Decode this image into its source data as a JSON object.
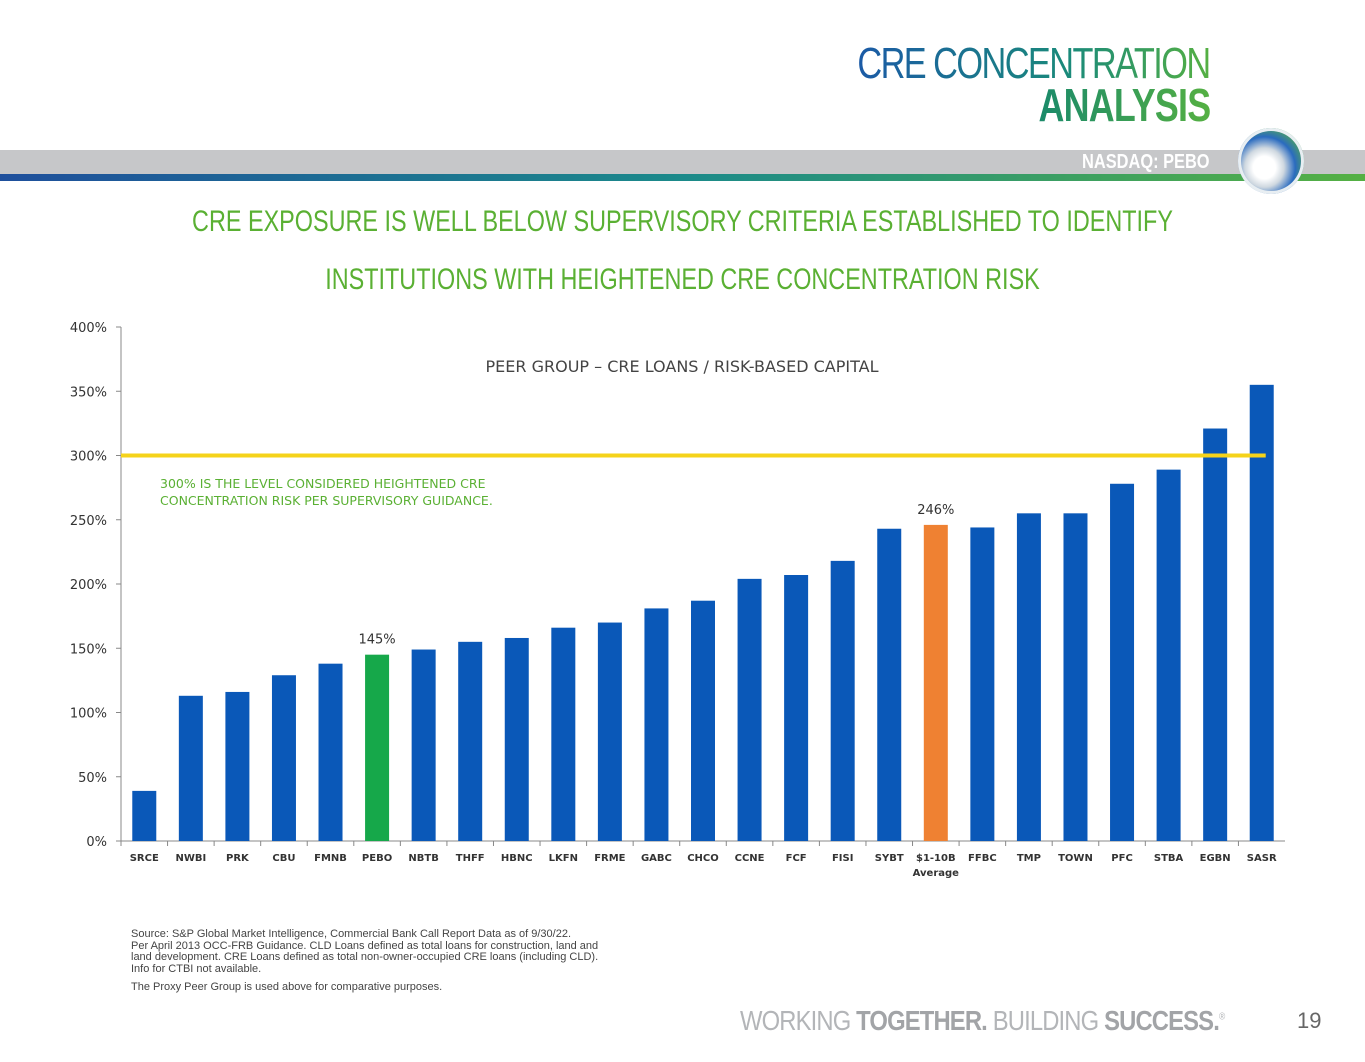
{
  "header": {
    "title_line1": "CRE CONCENTRATION",
    "title_line2": "ANALYSIS",
    "ticker": "NASDAQ: PEBO",
    "logo": "peoples-bancorp-logo"
  },
  "headline": {
    "line1": "CRE EXPOSURE IS WELL BELOW SUPERVISORY CRITERIA ESTABLISHED TO IDENTIFY",
    "line2": "INSTITUTIONS WITH HEIGHTENED CRE CONCENTRATION RISK"
  },
  "chart_data": {
    "type": "bar",
    "title": "PEER GROUP – CRE LOANS / RISK-BASED CAPITAL",
    "categories": [
      "SRCE",
      "NWBI",
      "PRK",
      "CBU",
      "FMNB",
      "PEBO",
      "NBTB",
      "THFF",
      "HBNC",
      "LKFN",
      "FRME",
      "GABC",
      "CHCO",
      "CCNE",
      "FCF",
      "FISI",
      "SYBT",
      "$1-10B Average",
      "FFBC",
      "TMP",
      "TOWN",
      "PFC",
      "STBA",
      "EGBN",
      "SASR"
    ],
    "values": [
      39,
      113,
      116,
      129,
      138,
      145,
      149,
      155,
      158,
      166,
      170,
      181,
      187,
      204,
      207,
      218,
      243,
      246,
      244,
      255,
      255,
      278,
      289,
      321,
      355
    ],
    "data_labels": {
      "PEBO": "145%",
      "$1-10B Average": "246%"
    },
    "yticks": [
      "0%",
      "50%",
      "100%",
      "150%",
      "200%",
      "250%",
      "300%",
      "350%",
      "400%"
    ],
    "ylim": [
      0,
      400
    ],
    "reference_line": {
      "value": 300,
      "color": "#f5d31a",
      "annotation_line1": "300% IS THE LEVEL CONSIDERED HEIGHTENED CRE",
      "annotation_line2": "CONCENTRATION RISK PER SUPERVISORY GUIDANCE."
    },
    "colors": {
      "default": "#0a58b8",
      "PEBO": "#16a84a",
      "$1-10B Average": "#ef8132"
    },
    "grid": false
  },
  "footnotes": [
    "Source: S&P Global Market Intelligence, Commercial Bank Call Report Data as of 9/30/22.",
    "Per April 2013 OCC-FRB Guidance. CLD Loans defined as total loans for construction, land and",
    "land development. CRE Loans defined as total non-owner-occupied CRE loans (including CLD).",
    "Info for CTBI not available.",
    "The Proxy Peer Group is used above for comparative purposes."
  ],
  "footer": {
    "tag_part1": "WORKING ",
    "tag_part2": "TOGETHER.",
    "tag_part3": " BUILDING ",
    "tag_part4": "SUCCESS.",
    "registered": "®",
    "page_number": "19"
  }
}
